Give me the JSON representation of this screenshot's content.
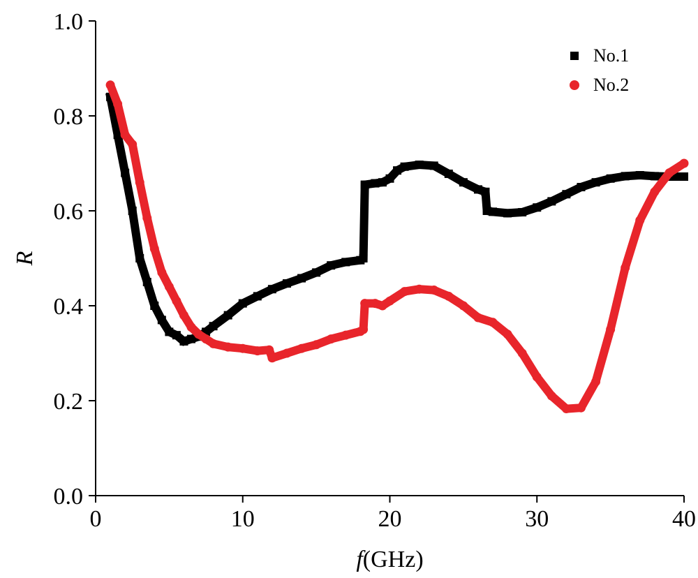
{
  "chart_data": {
    "type": "line",
    "title": "",
    "xlabel": "(GHz)",
    "xlabel_var": "f",
    "ylabel": "R",
    "xlim": [
      0,
      40
    ],
    "ylim": [
      0.0,
      1.0
    ],
    "x_ticks": [
      "0",
      "10",
      "20",
      "30",
      "40"
    ],
    "y_ticks": [
      "0.0",
      "0.2",
      "0.4",
      "0.6",
      "0.8",
      "1.0"
    ],
    "grid": false,
    "legend": "top-right",
    "series": [
      {
        "name": "No.1",
        "color": "#000000",
        "marker": "square",
        "points": [
          [
            1.0,
            0.84
          ],
          [
            1.5,
            0.76
          ],
          [
            2.0,
            0.68
          ],
          [
            2.5,
            0.6
          ],
          [
            3.0,
            0.5
          ],
          [
            3.5,
            0.45
          ],
          [
            4.0,
            0.4
          ],
          [
            4.5,
            0.37
          ],
          [
            5.0,
            0.345
          ],
          [
            5.5,
            0.338
          ],
          [
            6.0,
            0.325
          ],
          [
            6.5,
            0.33
          ],
          [
            7.0,
            0.335
          ],
          [
            7.5,
            0.345
          ],
          [
            8.0,
            0.357
          ],
          [
            9.0,
            0.38
          ],
          [
            10.0,
            0.405
          ],
          [
            11.0,
            0.42
          ],
          [
            12.0,
            0.435
          ],
          [
            13.0,
            0.447
          ],
          [
            14.0,
            0.458
          ],
          [
            15.0,
            0.47
          ],
          [
            16.0,
            0.485
          ],
          [
            17.0,
            0.492
          ],
          [
            18.0,
            0.496
          ],
          [
            18.2,
            0.5
          ],
          [
            18.3,
            0.655
          ],
          [
            19.0,
            0.658
          ],
          [
            19.5,
            0.66
          ],
          [
            20.0,
            0.668
          ],
          [
            20.5,
            0.685
          ],
          [
            21.0,
            0.693
          ],
          [
            22.0,
            0.697
          ],
          [
            23.0,
            0.695
          ],
          [
            24.0,
            0.678
          ],
          [
            25.0,
            0.66
          ],
          [
            26.0,
            0.645
          ],
          [
            26.5,
            0.64
          ],
          [
            26.6,
            0.6
          ],
          [
            27.0,
            0.598
          ],
          [
            28.0,
            0.595
          ],
          [
            29.0,
            0.597
          ],
          [
            30.0,
            0.607
          ],
          [
            31.0,
            0.62
          ],
          [
            32.0,
            0.635
          ],
          [
            33.0,
            0.65
          ],
          [
            34.0,
            0.66
          ],
          [
            35.0,
            0.668
          ],
          [
            36.0,
            0.673
          ],
          [
            37.0,
            0.675
          ],
          [
            38.0,
            0.673
          ],
          [
            39.0,
            0.672
          ],
          [
            40.0,
            0.672
          ]
        ]
      },
      {
        "name": "No.2",
        "color": "#e8252b",
        "marker": "circle",
        "points": [
          [
            1.0,
            0.865
          ],
          [
            1.5,
            0.825
          ],
          [
            2.0,
            0.76
          ],
          [
            2.5,
            0.74
          ],
          [
            3.0,
            0.66
          ],
          [
            3.5,
            0.585
          ],
          [
            4.0,
            0.52
          ],
          [
            4.5,
            0.47
          ],
          [
            5.0,
            0.44
          ],
          [
            5.5,
            0.41
          ],
          [
            6.0,
            0.38
          ],
          [
            6.5,
            0.355
          ],
          [
            7.0,
            0.34
          ],
          [
            7.5,
            0.33
          ],
          [
            8.0,
            0.32
          ],
          [
            9.0,
            0.313
          ],
          [
            10.0,
            0.31
          ],
          [
            11.0,
            0.305
          ],
          [
            11.8,
            0.307
          ],
          [
            12.0,
            0.29
          ],
          [
            13.0,
            0.3
          ],
          [
            14.0,
            0.31
          ],
          [
            15.0,
            0.318
          ],
          [
            16.0,
            0.33
          ],
          [
            17.0,
            0.338
          ],
          [
            18.0,
            0.346
          ],
          [
            18.2,
            0.35
          ],
          [
            18.3,
            0.405
          ],
          [
            19.0,
            0.405
          ],
          [
            19.5,
            0.4
          ],
          [
            20.0,
            0.41
          ],
          [
            21.0,
            0.43
          ],
          [
            22.0,
            0.435
          ],
          [
            23.0,
            0.433
          ],
          [
            24.0,
            0.42
          ],
          [
            25.0,
            0.4
          ],
          [
            26.0,
            0.375
          ],
          [
            27.0,
            0.365
          ],
          [
            28.0,
            0.34
          ],
          [
            29.0,
            0.3
          ],
          [
            30.0,
            0.25
          ],
          [
            31.0,
            0.21
          ],
          [
            32.0,
            0.183
          ],
          [
            33.0,
            0.185
          ],
          [
            34.0,
            0.24
          ],
          [
            35.0,
            0.35
          ],
          [
            36.0,
            0.48
          ],
          [
            37.0,
            0.58
          ],
          [
            38.0,
            0.64
          ],
          [
            39.0,
            0.68
          ],
          [
            40.0,
            0.7
          ]
        ]
      }
    ]
  }
}
